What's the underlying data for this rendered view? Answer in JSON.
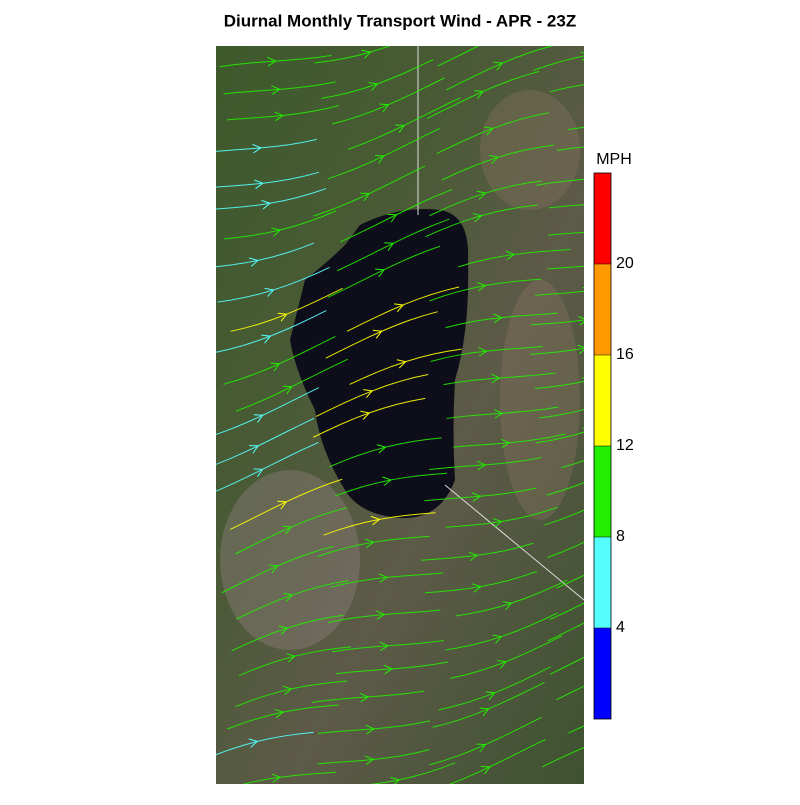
{
  "title": "Diurnal Monthly Transport Wind - APR - 23Z",
  "colorbar": {
    "label": "MPH",
    "range": [
      0,
      24
    ],
    "ticks": [
      4,
      8,
      12,
      16,
      20
    ],
    "colors": [
      "#0000ff",
      "#55ffff",
      "#22ee00",
      "#ffff00",
      "#ff9900",
      "#ff0000"
    ]
  }
}
